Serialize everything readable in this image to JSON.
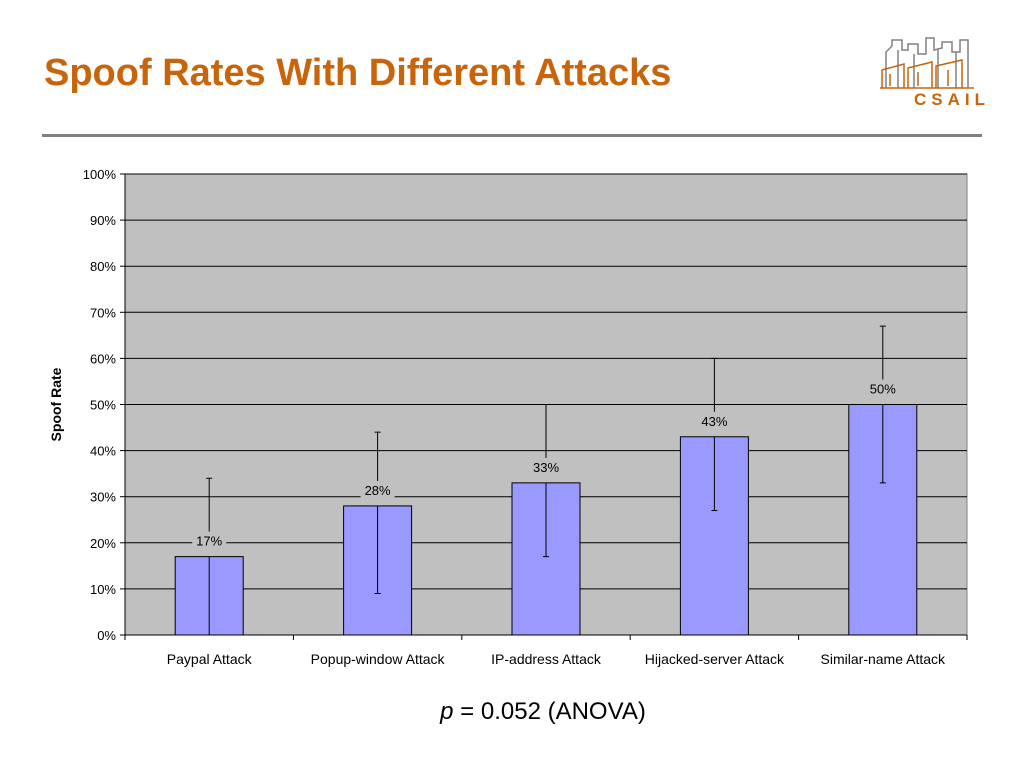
{
  "slide": {
    "title": "Spoof Rates With Different Attacks",
    "logo_text": "CSAIL",
    "footnote": {
      "p_symbol": "p",
      "rest": " = 0.052 (ANOVA)"
    }
  },
  "colors": {
    "title": "#c8650b",
    "bar_fill": "#9999ff",
    "plot_bg": "#c0c0c0",
    "rule": "#808080"
  },
  "chart_data": {
    "type": "bar",
    "title": "",
    "xlabel": "",
    "ylabel": "Spoof Rate",
    "ylim": [
      0,
      100
    ],
    "yticks": [
      0,
      10,
      20,
      30,
      40,
      50,
      60,
      70,
      80,
      90,
      100
    ],
    "ytick_labels": [
      "0%",
      "10%",
      "20%",
      "30%",
      "40%",
      "50%",
      "60%",
      "70%",
      "80%",
      "90%",
      "100%"
    ],
    "grid": true,
    "categories": [
      "Paypal Attack",
      "Popup-window Attack",
      "IP-address Attack",
      "Hijacked-server Attack",
      "Similar-name Attack"
    ],
    "values": [
      17,
      28,
      33,
      43,
      50
    ],
    "value_labels": [
      "17%",
      "28%",
      "33%",
      "43%",
      "50%"
    ],
    "error_bars": [
      {
        "low": 0,
        "high": 34
      },
      {
        "low": 9,
        "high": 44
      },
      {
        "low": 17,
        "high": 50
      },
      {
        "low": 27,
        "high": 60
      },
      {
        "low": 33,
        "high": 67
      }
    ]
  }
}
